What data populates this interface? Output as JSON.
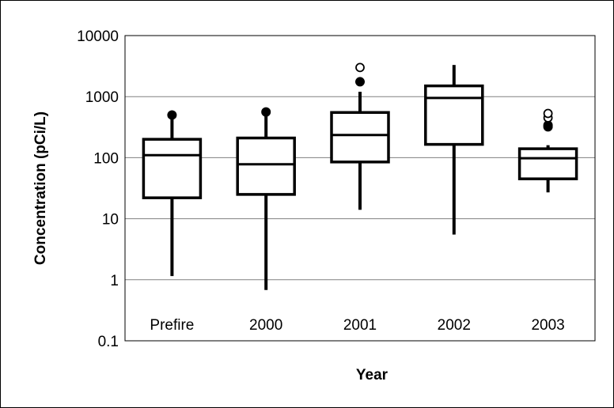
{
  "chart_data": {
    "type": "box",
    "title": "",
    "xlabel": "Year",
    "ylabel": "Concentration (pCi/L)",
    "yscale": "log",
    "ylim": [
      0.1,
      10000
    ],
    "ytick_labels": [
      "0.1",
      "1",
      "10",
      "100",
      "1000",
      "10000"
    ],
    "grid": true,
    "categories": [
      "Prefire",
      "2000",
      "2001",
      "2002",
      "2003"
    ],
    "boxes": [
      {
        "category": "Prefire",
        "whisker_low": 1.15,
        "q1": 22,
        "median": 110,
        "q3": 200,
        "whisker_high": 450,
        "outliers_filled": [
          500
        ],
        "outliers_open": []
      },
      {
        "category": "2000",
        "whisker_low": 0.68,
        "q1": 25,
        "median": 78,
        "q3": 210,
        "whisker_high": 500,
        "outliers_filled": [
          560
        ],
        "outliers_open": []
      },
      {
        "category": "2001",
        "whisker_low": 14,
        "q1": 85,
        "median": 235,
        "q3": 550,
        "whisker_high": 1200,
        "outliers_filled": [
          1750
        ],
        "outliers_open": [
          3000
        ]
      },
      {
        "category": "2002",
        "whisker_low": 5.5,
        "q1": 165,
        "median": 950,
        "q3": 1500,
        "whisker_high": 3300,
        "outliers_filled": [],
        "outliers_open": []
      },
      {
        "category": "2003",
        "whisker_low": 27,
        "q1": 45,
        "median": 98,
        "q3": 140,
        "whisker_high": 160,
        "outliers_filled": [
          320,
          340
        ],
        "outliers_open": [
          450,
          530
        ]
      }
    ]
  }
}
